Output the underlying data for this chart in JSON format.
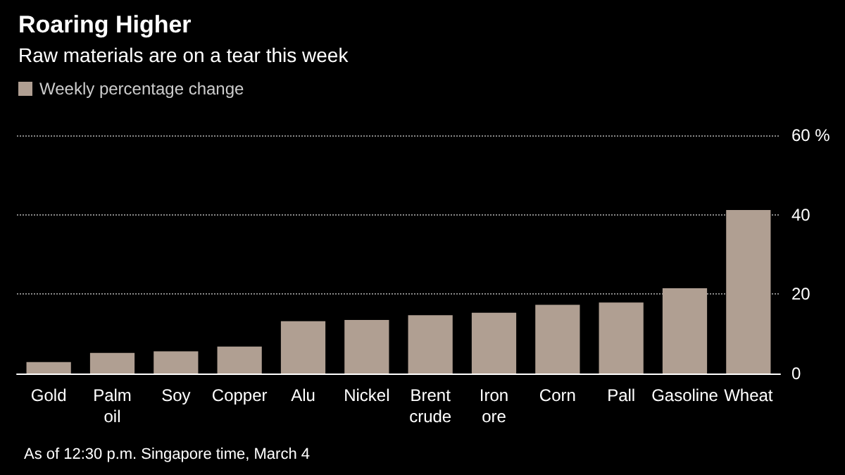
{
  "chart_data": {
    "type": "bar",
    "title": "Roaring Higher",
    "subtitle": "Raw materials are on a tear this week",
    "categories": [
      "Gold",
      "Palm\noil",
      "Soy",
      "Copper",
      "Alu",
      "Nickel",
      "Brent\ncrude",
      "Iron\nore",
      "Corn",
      "Pall",
      "Gasoline",
      "Wheat"
    ],
    "series": [
      {
        "name": "Weekly percentage change",
        "color": "#b09f92",
        "values": [
          2.9,
          5.2,
          5.6,
          6.8,
          13.2,
          13.5,
          14.7,
          15.3,
          17.3,
          17.9,
          21.5,
          41.2
        ]
      }
    ],
    "ylim": [
      0,
      60
    ],
    "yticks": [
      0,
      20,
      40,
      {
        "value": 60,
        "label": "60 %"
      }
    ],
    "grid": "y",
    "legend": "top left",
    "annotations": [
      "As of 12:30 p.m. Singapore time, March 4"
    ]
  }
}
